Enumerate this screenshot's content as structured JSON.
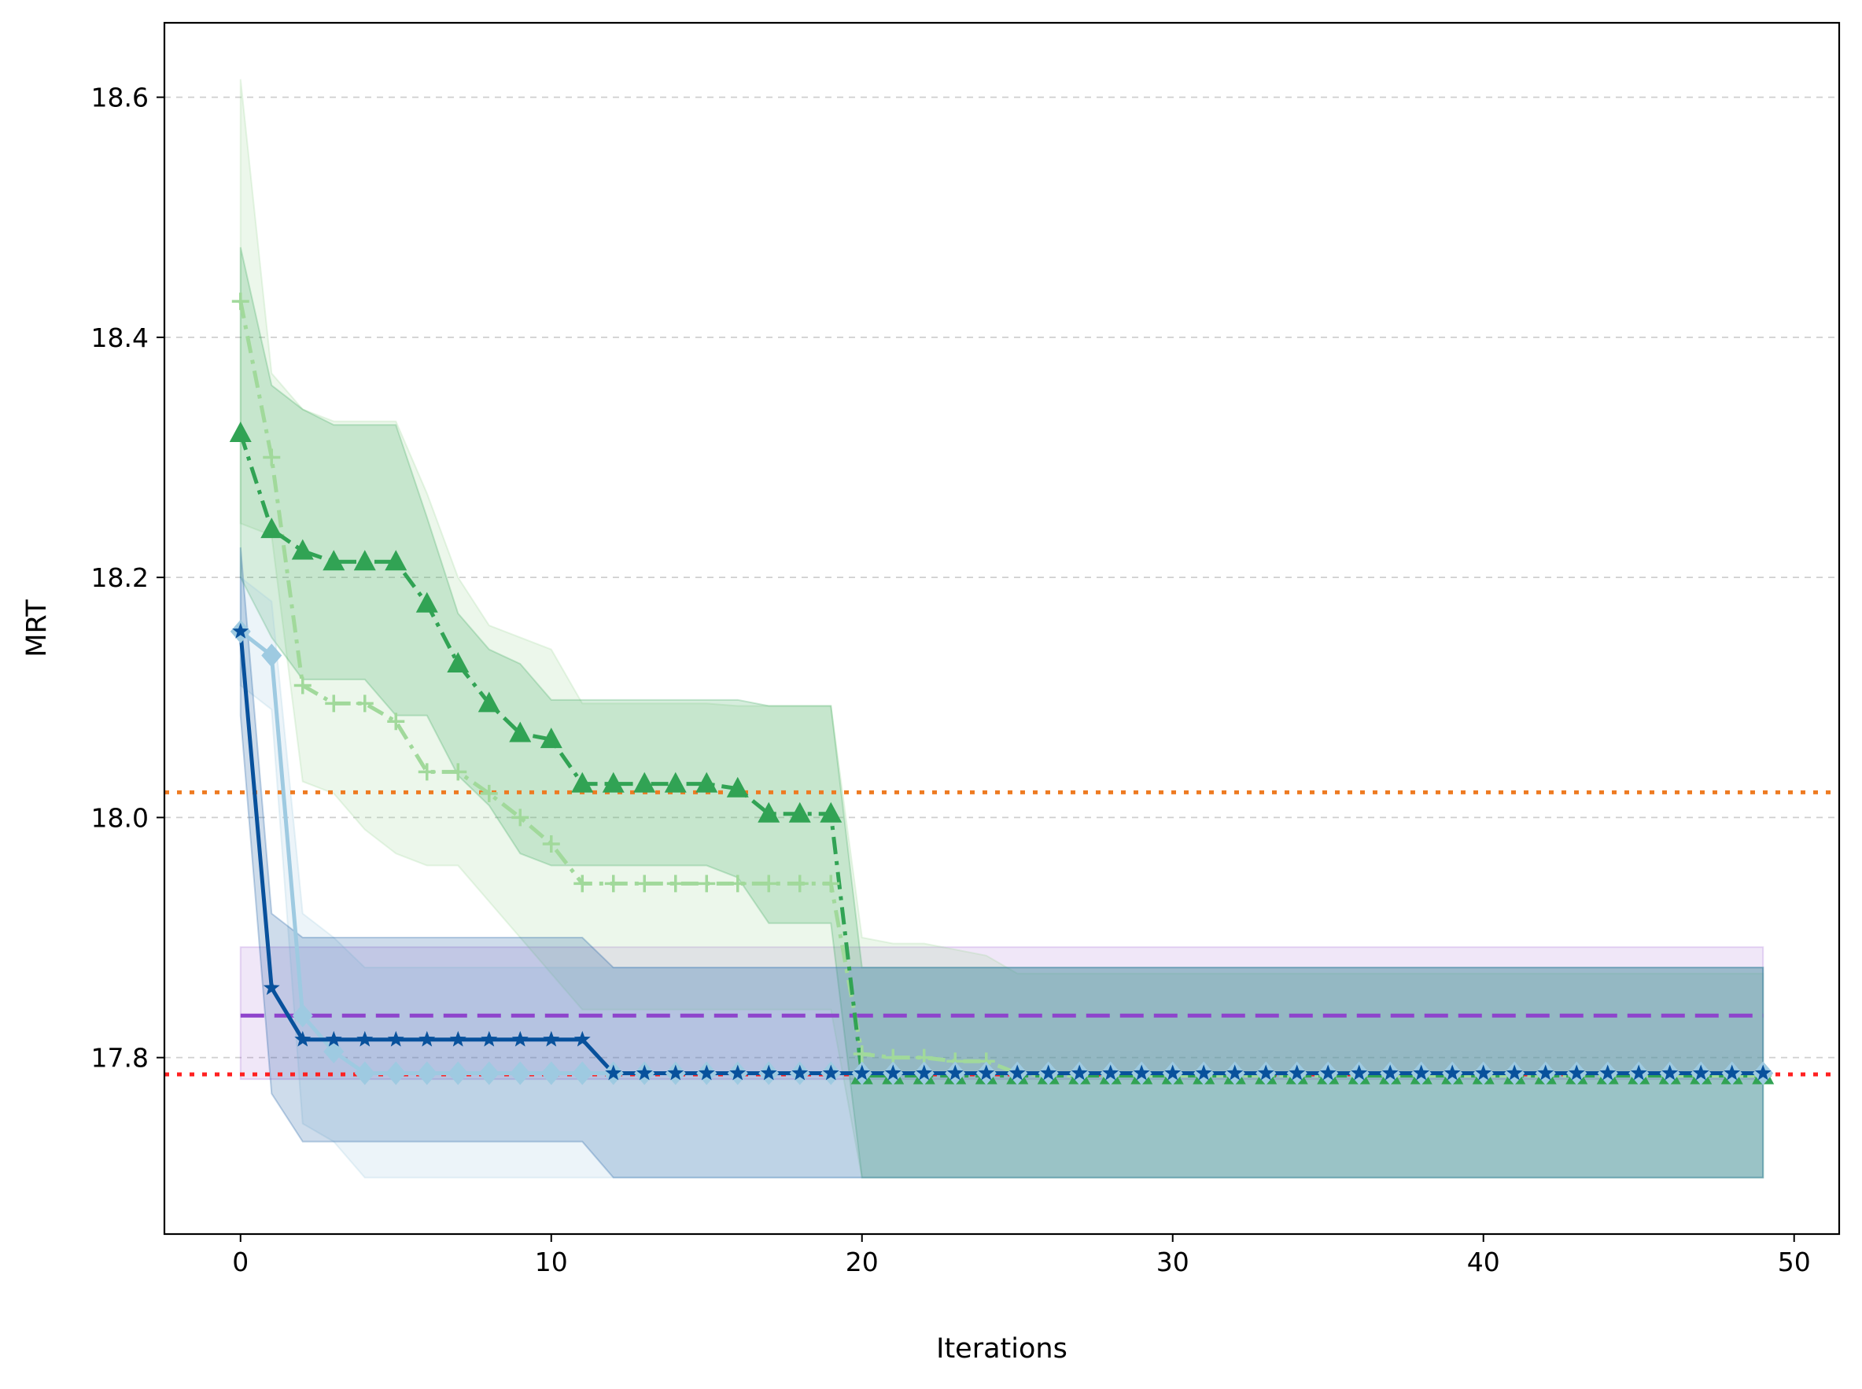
{
  "chart_data": {
    "type": "line",
    "title": "",
    "xlabel": "Iterations",
    "ylabel": "MRT",
    "xlim": [
      -2.45,
      51.45
    ],
    "ylim": [
      17.653,
      18.662
    ],
    "x_ticks": [
      0,
      10,
      20,
      30,
      40,
      50
    ],
    "y_ticks": [
      17.8,
      18.0,
      18.2,
      18.4,
      18.6
    ],
    "x_tick_labels": [
      "0",
      "10",
      "20",
      "30",
      "40",
      "50"
    ],
    "y_tick_labels": [
      "17.8",
      "18.0",
      "18.2",
      "18.4",
      "18.6"
    ],
    "grid": "y-dashed",
    "legend": "none",
    "series": [
      {
        "color": "#a1d99b",
        "linestyle": "dashdot",
        "marker": "plus",
        "values": [
          18.43,
          18.3,
          18.11,
          18.095,
          18.095,
          18.08,
          18.038,
          18.038,
          18.02,
          18.0,
          17.978,
          17.945,
          17.945,
          17.945,
          17.945,
          17.945,
          17.945,
          17.945,
          17.945,
          17.945,
          17.803,
          17.8,
          17.8,
          17.797,
          17.797,
          17.787,
          17.785,
          17.785,
          17.785,
          17.785,
          17.785,
          17.785,
          17.785,
          17.785,
          17.785,
          17.785,
          17.785,
          17.785,
          17.785,
          17.785,
          17.785,
          17.785,
          17.785,
          17.785,
          17.785,
          17.785,
          17.785,
          17.785,
          17.785,
          17.785
        ],
        "band_upper": [
          18.615,
          18.37,
          18.34,
          18.33,
          18.33,
          18.33,
          18.27,
          18.2,
          18.16,
          18.15,
          18.14,
          18.095,
          18.095,
          18.095,
          18.095,
          18.095,
          18.093,
          18.093,
          18.093,
          18.093,
          17.9,
          17.895,
          17.895,
          17.89,
          17.885,
          17.87,
          17.87,
          17.87,
          17.87,
          17.87,
          17.87,
          17.87,
          17.87,
          17.87,
          17.87,
          17.87,
          17.87,
          17.87,
          17.87,
          17.87,
          17.87,
          17.87,
          17.87,
          17.87,
          17.87,
          17.87,
          17.87,
          17.87,
          17.87,
          17.87
        ],
        "band_lower": [
          18.245,
          18.235,
          18.03,
          18.02,
          17.99,
          17.97,
          17.96,
          17.96,
          17.93,
          17.9,
          17.87,
          17.84,
          17.84,
          17.84,
          17.84,
          17.84,
          17.84,
          17.84,
          17.84,
          17.84,
          17.7,
          17.7,
          17.7,
          17.7,
          17.7,
          17.7,
          17.7,
          17.7,
          17.7,
          17.7,
          17.7,
          17.7,
          17.7,
          17.7,
          17.7,
          17.7,
          17.7,
          17.7,
          17.7,
          17.7,
          17.7,
          17.7,
          17.7,
          17.7,
          17.7,
          17.7,
          17.7,
          17.7,
          17.7,
          17.7
        ]
      },
      {
        "color": "#31a354",
        "linestyle": "dashdot",
        "marker": "triangle",
        "values": [
          18.32,
          18.24,
          18.222,
          18.213,
          18.213,
          18.213,
          18.178,
          18.128,
          18.095,
          18.07,
          18.065,
          18.028,
          18.028,
          18.028,
          18.028,
          18.028,
          18.024,
          18.003,
          18.003,
          18.003,
          17.785,
          17.785,
          17.785,
          17.785,
          17.785,
          17.785,
          17.785,
          17.785,
          17.785,
          17.785,
          17.785,
          17.785,
          17.785,
          17.785,
          17.785,
          17.785,
          17.785,
          17.785,
          17.785,
          17.785,
          17.785,
          17.785,
          17.785,
          17.785,
          17.785,
          17.785,
          17.785,
          17.785,
          17.785,
          17.785
        ],
        "band_upper": [
          18.475,
          18.36,
          18.34,
          18.327,
          18.327,
          18.327,
          18.25,
          18.17,
          18.14,
          18.128,
          18.098,
          18.098,
          18.098,
          18.098,
          18.098,
          18.098,
          18.098,
          18.093,
          18.093,
          18.093,
          17.875,
          17.875,
          17.875,
          17.875,
          17.875,
          17.875,
          17.875,
          17.875,
          17.875,
          17.875,
          17.875,
          17.875,
          17.875,
          17.875,
          17.875,
          17.875,
          17.875,
          17.875,
          17.875,
          17.875,
          17.875,
          17.875,
          17.875,
          17.875,
          17.875,
          17.875,
          17.875,
          17.875,
          17.875,
          17.875
        ],
        "band_lower": [
          18.2,
          18.15,
          18.115,
          18.115,
          18.115,
          18.085,
          18.085,
          18.035,
          18.01,
          17.97,
          17.96,
          17.96,
          17.96,
          17.96,
          17.96,
          17.96,
          17.95,
          17.912,
          17.912,
          17.912,
          17.7,
          17.7,
          17.7,
          17.7,
          17.7,
          17.7,
          17.7,
          17.7,
          17.7,
          17.7,
          17.7,
          17.7,
          17.7,
          17.7,
          17.7,
          17.7,
          17.7,
          17.7,
          17.7,
          17.7,
          17.7,
          17.7,
          17.7,
          17.7,
          17.7,
          17.7,
          17.7,
          17.7,
          17.7,
          17.7
        ]
      },
      {
        "color": "#9ecae1",
        "linestyle": "solid",
        "marker": "diamond",
        "values": [
          18.155,
          18.135,
          17.835,
          17.805,
          17.787,
          17.787,
          17.787,
          17.787,
          17.787,
          17.787,
          17.787,
          17.787,
          17.787,
          17.787,
          17.787,
          17.787,
          17.787,
          17.787,
          17.787,
          17.787,
          17.787,
          17.787,
          17.787,
          17.787,
          17.787,
          17.787,
          17.787,
          17.787,
          17.787,
          17.787,
          17.787,
          17.787,
          17.787,
          17.787,
          17.787,
          17.787,
          17.787,
          17.787,
          17.787,
          17.787,
          17.787,
          17.787,
          17.787,
          17.787,
          17.787,
          17.787,
          17.787,
          17.787,
          17.787,
          17.787
        ],
        "band_upper": [
          18.2,
          18.18,
          17.92,
          17.9,
          17.875,
          17.875,
          17.875,
          17.875,
          17.875,
          17.875,
          17.875,
          17.875,
          17.875,
          17.875,
          17.875,
          17.875,
          17.875,
          17.875,
          17.875,
          17.875,
          17.875,
          17.875,
          17.875,
          17.875,
          17.875,
          17.875,
          17.875,
          17.875,
          17.875,
          17.875,
          17.875,
          17.875,
          17.875,
          17.875,
          17.875,
          17.875,
          17.875,
          17.875,
          17.875,
          17.875,
          17.875,
          17.875,
          17.875,
          17.875,
          17.875,
          17.875,
          17.875,
          17.875,
          17.875,
          17.875
        ],
        "band_lower": [
          18.11,
          18.09,
          17.745,
          17.73,
          17.7,
          17.7,
          17.7,
          17.7,
          17.7,
          17.7,
          17.7,
          17.7,
          17.7,
          17.7,
          17.7,
          17.7,
          17.7,
          17.7,
          17.7,
          17.7,
          17.7,
          17.7,
          17.7,
          17.7,
          17.7,
          17.7,
          17.7,
          17.7,
          17.7,
          17.7,
          17.7,
          17.7,
          17.7,
          17.7,
          17.7,
          17.7,
          17.7,
          17.7,
          17.7,
          17.7,
          17.7,
          17.7,
          17.7,
          17.7,
          17.7,
          17.7,
          17.7,
          17.7,
          17.7,
          17.7
        ]
      },
      {
        "color": "#08519c",
        "linestyle": "solid",
        "marker": "star",
        "values": [
          18.155,
          17.858,
          17.815,
          17.815,
          17.815,
          17.815,
          17.815,
          17.815,
          17.815,
          17.815,
          17.815,
          17.815,
          17.787,
          17.787,
          17.787,
          17.787,
          17.787,
          17.787,
          17.787,
          17.787,
          17.787,
          17.787,
          17.787,
          17.787,
          17.787,
          17.787,
          17.787,
          17.787,
          17.787,
          17.787,
          17.787,
          17.787,
          17.787,
          17.787,
          17.787,
          17.787,
          17.787,
          17.787,
          17.787,
          17.787,
          17.787,
          17.787,
          17.787,
          17.787,
          17.787,
          17.787,
          17.787,
          17.787,
          17.787,
          17.787
        ],
        "band_upper": [
          18.225,
          17.92,
          17.9,
          17.9,
          17.9,
          17.9,
          17.9,
          17.9,
          17.9,
          17.9,
          17.9,
          17.9,
          17.875,
          17.875,
          17.875,
          17.875,
          17.875,
          17.875,
          17.875,
          17.875,
          17.875,
          17.875,
          17.875,
          17.875,
          17.875,
          17.875,
          17.875,
          17.875,
          17.875,
          17.875,
          17.875,
          17.875,
          17.875,
          17.875,
          17.875,
          17.875,
          17.875,
          17.875,
          17.875,
          17.875,
          17.875,
          17.875,
          17.875,
          17.875,
          17.875,
          17.875,
          17.875,
          17.875,
          17.875,
          17.875
        ],
        "band_lower": [
          18.085,
          17.77,
          17.73,
          17.73,
          17.73,
          17.73,
          17.73,
          17.73,
          17.73,
          17.73,
          17.73,
          17.73,
          17.7,
          17.7,
          17.7,
          17.7,
          17.7,
          17.7,
          17.7,
          17.7,
          17.7,
          17.7,
          17.7,
          17.7,
          17.7,
          17.7,
          17.7,
          17.7,
          17.7,
          17.7,
          17.7,
          17.7,
          17.7,
          17.7,
          17.7,
          17.7,
          17.7,
          17.7,
          17.7,
          17.7,
          17.7,
          17.7,
          17.7,
          17.7,
          17.7,
          17.7,
          17.7,
          17.7,
          17.7,
          17.7
        ]
      }
    ],
    "flat_band": {
      "color": "#8e44cc",
      "x": [
        0,
        49
      ],
      "value": 17.835,
      "upper": 17.892,
      "lower": 17.782,
      "linestyle": "dashed"
    },
    "reference_lines": [
      {
        "color": "#ee7b22",
        "value": 18.021,
        "linestyle": "dotted"
      },
      {
        "color": "#ff2020",
        "value": 17.786,
        "linestyle": "dotted"
      }
    ]
  }
}
